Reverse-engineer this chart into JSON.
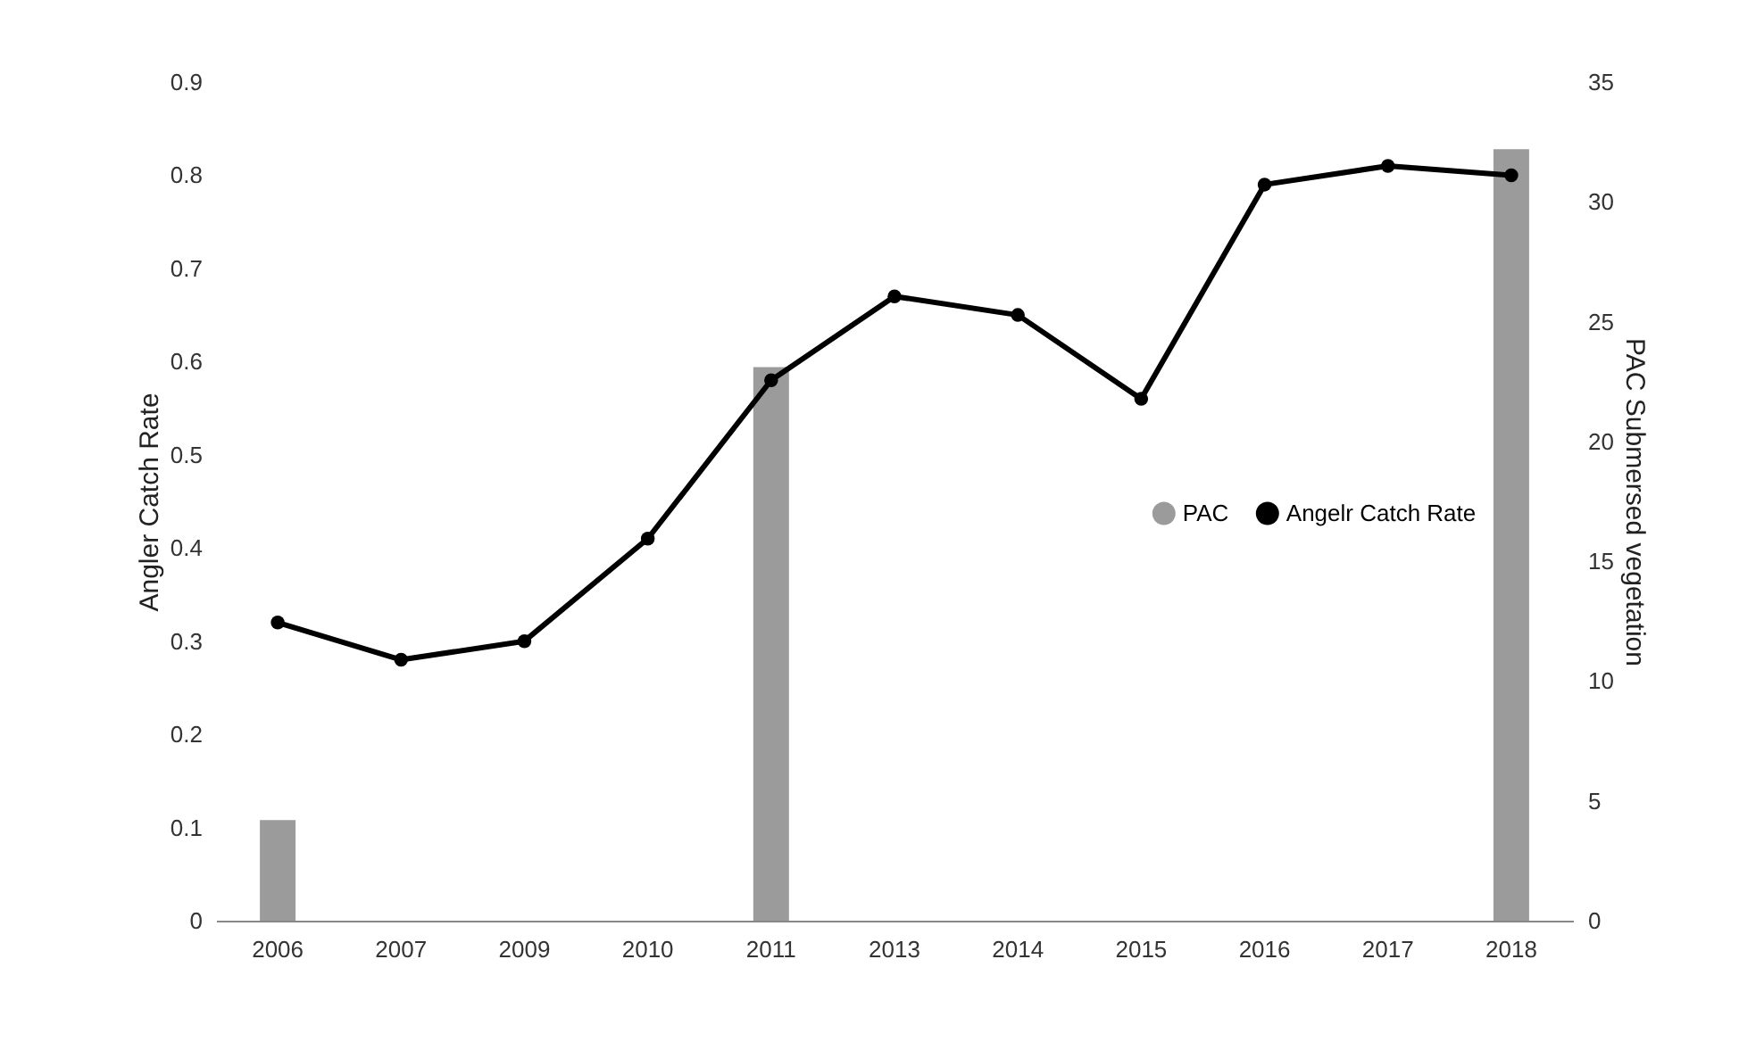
{
  "chart_data": {
    "type": "bar",
    "categories": [
      "2006",
      "2007",
      "2009",
      "2010",
      "2011",
      "2013",
      "2014",
      "2015",
      "2016",
      "2017",
      "2018"
    ],
    "ylabel": "Angler Catch Rate",
    "y2label": "PAC Submersed vegetation",
    "ylim": [
      0,
      0.9
    ],
    "yticks": [
      0,
      0.1,
      0.2,
      0.3,
      0.4,
      0.5,
      0.6,
      0.7,
      0.8,
      0.9
    ],
    "y2lim": [
      0,
      35
    ],
    "y2ticks": [
      0,
      5,
      10,
      15,
      20,
      25,
      30,
      35
    ],
    "legend": "right",
    "marker": "circle",
    "line_style": "solid",
    "series": [
      {
        "name": "PAC",
        "axis": "y2",
        "color": "#9b9b9b",
        "values": [
          4.2,
          0,
          0,
          0,
          23.1,
          0,
          0,
          0,
          0,
          0,
          32.2
        ]
      },
      {
        "name": "Angelr Catch Rate",
        "type": "line",
        "color": "#000000",
        "values": [
          0.32,
          0.28,
          0.3,
          0.41,
          0.58,
          0.67,
          0.65,
          0.56,
          0.79,
          0.81,
          0.8
        ]
      }
    ]
  }
}
